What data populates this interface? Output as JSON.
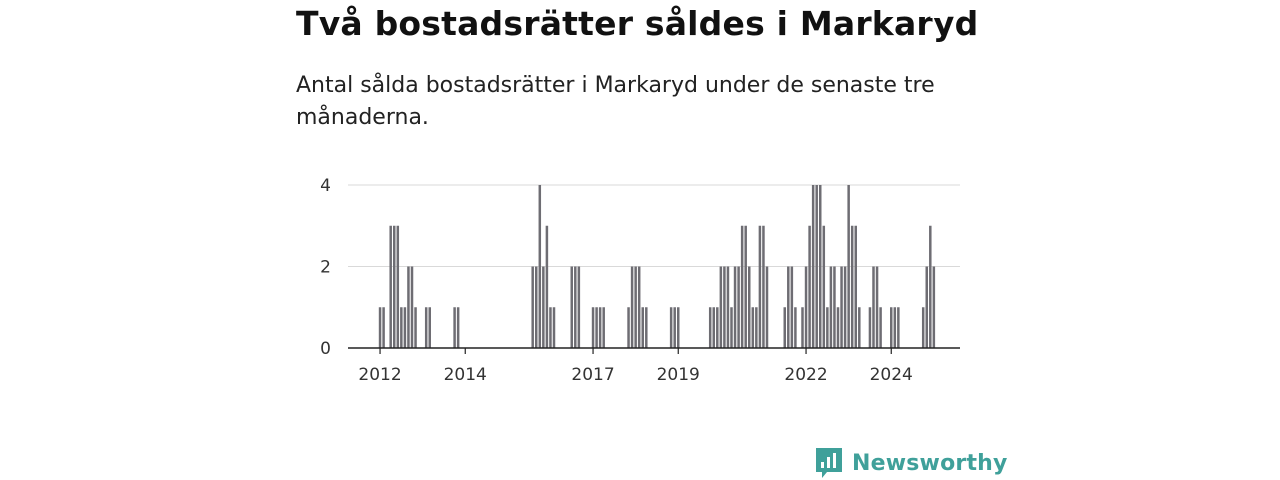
{
  "title": "Två bostadsrätter såldes i Markaryd",
  "subtitle": "Antal sålda bostadsrätter i Markaryd under de senaste tre månaderna.",
  "brand": {
    "name": "Newsworthy",
    "color": "#3fa09a"
  },
  "colors": {
    "bar": "#6e6d73",
    "highlight": "#2a9d96",
    "grid": "#d9d9d9",
    "axis": "#222222"
  },
  "chart_data": {
    "type": "bar",
    "ylim": [
      0,
      4
    ],
    "yticks": [
      "0",
      "2",
      "4"
    ],
    "xticks": [
      {
        "label": "2012",
        "date": "2012-01"
      },
      {
        "label": "2014",
        "date": "2014-01"
      },
      {
        "label": "2017",
        "date": "2017-01"
      },
      {
        "label": "2019",
        "date": "2019-01"
      },
      {
        "label": "2022",
        "date": "2022-01"
      },
      {
        "label": "2024",
        "date": "2024-01"
      }
    ],
    "start_month": "2011-12",
    "values": [
      0,
      1,
      1,
      0,
      3,
      3,
      3,
      1,
      1,
      2,
      2,
      1,
      0,
      0,
      1,
      1,
      0,
      0,
      0,
      0,
      0,
      0,
      1,
      1,
      0,
      0,
      0,
      0,
      0,
      0,
      0,
      0,
      0,
      0,
      0,
      0,
      0,
      0,
      0,
      0,
      0,
      0,
      0,
      0,
      2,
      2,
      4,
      2,
      3,
      1,
      1,
      0,
      0,
      0,
      0,
      2,
      2,
      2,
      0,
      0,
      0,
      1,
      1,
      1,
      1,
      0,
      0,
      0,
      0,
      0,
      0,
      1,
      2,
      2,
      2,
      1,
      1,
      0,
      0,
      0,
      0,
      0,
      0,
      1,
      1,
      1,
      0,
      0,
      0,
      0,
      0,
      0,
      0,
      0,
      1,
      1,
      1,
      2,
      2,
      2,
      1,
      2,
      2,
      3,
      3,
      2,
      1,
      1,
      3,
      3,
      2,
      0,
      0,
      0,
      0,
      1,
      2,
      2,
      1,
      0,
      1,
      2,
      3,
      4,
      4,
      4,
      3,
      1,
      2,
      2,
      1,
      2,
      2,
      4,
      3,
      3,
      1,
      0,
      0,
      1,
      2,
      2,
      1,
      0,
      0,
      1,
      1,
      1,
      0,
      0,
      0,
      0,
      0,
      0,
      1,
      2,
      3,
      2
    ],
    "highlight": {
      "index": 158,
      "label": "2"
    }
  }
}
